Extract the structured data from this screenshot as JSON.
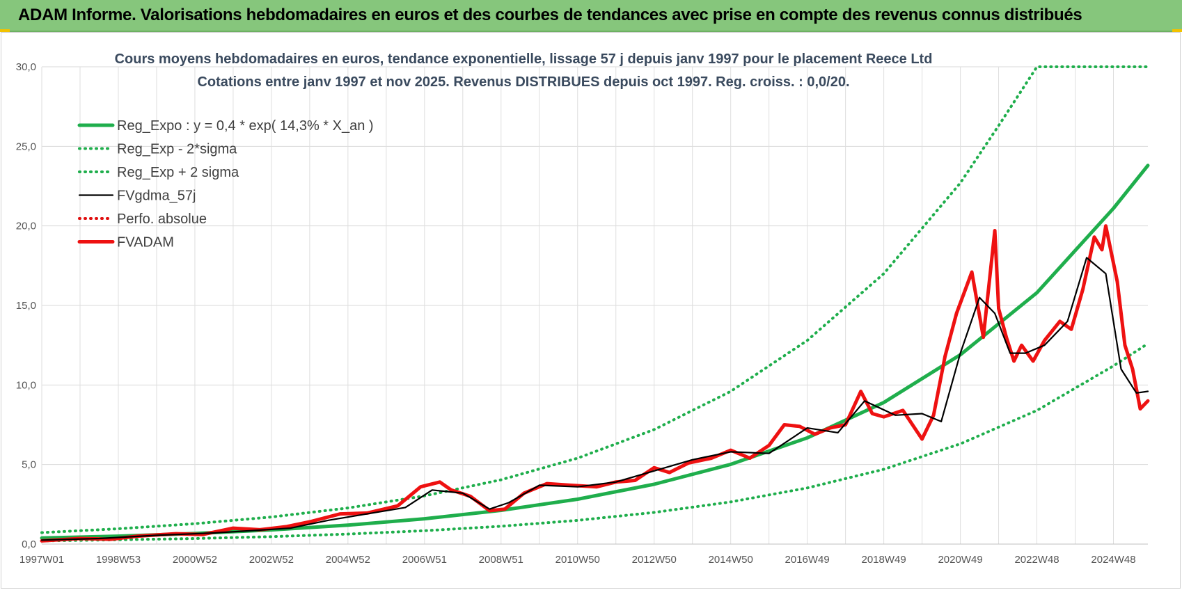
{
  "header": {
    "title": "ADAM Informe. Valorisations hebdomadaires en euros et des courbes de tendances avec prise en compte des revenus connus distribués"
  },
  "chart_data": {
    "type": "line",
    "title": "Cours moyens hebdomadaires en euros, tendance exponentielle, lissage 57 j depuis janv 1997 pour le placement Reece Ltd",
    "subtitle": "Cotations entre janv 1997 et nov 2025. Revenus DISTRIBUES depuis oct 1997. Reg. croiss. : 0,0/20.",
    "xlabel": "",
    "ylabel": "",
    "xlim": [
      1997.0,
      2025.9
    ],
    "ylim": [
      0,
      30
    ],
    "yticks": [
      "0,0",
      "5,0",
      "10,0",
      "15,0",
      "20,0",
      "25,0",
      "30,0"
    ],
    "xticks": [
      {
        "label": "1997W01",
        "x": 1997.0
      },
      {
        "label": "1998W53",
        "x": 1999.0
      },
      {
        "label": "2000W52",
        "x": 2001.0
      },
      {
        "label": "2002W52",
        "x": 2003.0
      },
      {
        "label": "2004W52",
        "x": 2005.0
      },
      {
        "label": "2006W51",
        "x": 2007.0
      },
      {
        "label": "2008W51",
        "x": 2009.0
      },
      {
        "label": "2010W50",
        "x": 2011.0
      },
      {
        "label": "2012W50",
        "x": 2013.0
      },
      {
        "label": "2014W50",
        "x": 2015.0
      },
      {
        "label": "2016W49",
        "x": 2017.0
      },
      {
        "label": "2018W49",
        "x": 2019.0
      },
      {
        "label": "2020W49",
        "x": 2021.0
      },
      {
        "label": "2022W48",
        "x": 2023.0
      },
      {
        "label": "2024W48",
        "x": 2025.0
      }
    ],
    "grid": true,
    "legend_position": "top-left",
    "series": [
      {
        "name": "Reg_Expo : y = 0,4 * exp( 14,3% *  X_an )",
        "style": "solid-thick",
        "color": "#1fae4c",
        "x": [
          1997.0,
          1999.0,
          2001.0,
          2003.0,
          2005.0,
          2007.0,
          2009.0,
          2011.0,
          2013.0,
          2015.0,
          2017.0,
          2019.0,
          2021.0,
          2023.0,
          2025.0,
          2025.9
        ],
        "y": [
          0.38,
          0.5,
          0.67,
          0.89,
          1.19,
          1.59,
          2.12,
          2.82,
          3.76,
          5.01,
          6.68,
          8.9,
          11.9,
          15.8,
          21.1,
          23.8
        ]
      },
      {
        "name": "Reg_Exp - 2*sigma",
        "style": "dotted",
        "color": "#1fae4c",
        "x": [
          1997.0,
          1999.0,
          2001.0,
          2003.0,
          2005.0,
          2007.0,
          2009.0,
          2011.0,
          2013.0,
          2015.0,
          2017.0,
          2019.0,
          2021.0,
          2023.0,
          2025.0,
          2025.9
        ],
        "y": [
          0.2,
          0.27,
          0.35,
          0.47,
          0.63,
          0.84,
          1.12,
          1.49,
          1.99,
          2.65,
          3.53,
          4.7,
          6.3,
          8.4,
          11.2,
          12.6
        ]
      },
      {
        "name": "Reg_Exp + 2 sigma",
        "style": "dotted",
        "color": "#1fae4c",
        "x": [
          1997.0,
          1999.0,
          2001.0,
          2003.0,
          2005.0,
          2007.0,
          2009.0,
          2011.0,
          2013.0,
          2015.0,
          2017.0,
          2019.0,
          2021.0,
          2022.0,
          2023.0,
          2025.9
        ],
        "y": [
          0.72,
          0.96,
          1.28,
          1.7,
          2.27,
          3.03,
          4.04,
          5.4,
          7.2,
          9.6,
          12.8,
          17.0,
          22.7,
          26.3,
          30.0,
          30.0
        ]
      },
      {
        "name": "FVgdma_57j",
        "style": "solid",
        "color": "#000000",
        "x": [
          1997.0,
          1998.5,
          2000.0,
          2001.5,
          2002.5,
          2003.5,
          2004.5,
          2005.5,
          2006.5,
          2007.2,
          2008.0,
          2008.7,
          2009.2,
          2010.0,
          2011.0,
          2012.0,
          2013.0,
          2014.0,
          2015.0,
          2016.0,
          2017.0,
          2017.8,
          2018.5,
          2019.3,
          2020.0,
          2020.5,
          2021.0,
          2021.5,
          2021.9,
          2022.3,
          2022.7,
          2023.2,
          2023.8,
          2024.3,
          2024.8,
          2025.2,
          2025.6,
          2025.9
        ],
        "y": [
          0.25,
          0.35,
          0.55,
          0.7,
          0.85,
          1.0,
          1.5,
          1.9,
          2.3,
          3.4,
          3.2,
          2.2,
          2.6,
          3.7,
          3.6,
          3.9,
          4.6,
          5.3,
          5.8,
          5.7,
          7.3,
          7.0,
          9.0,
          8.1,
          8.2,
          7.7,
          12.0,
          15.5,
          14.5,
          12.0,
          12.0,
          12.5,
          14.0,
          18.0,
          17.0,
          11.0,
          9.5,
          9.6
        ]
      },
      {
        "name": "Perfo. absolue",
        "style": "dotted",
        "color": "#e01010",
        "x": [],
        "y": []
      },
      {
        "name": "FVADAM",
        "style": "solid-thick",
        "color": "#ee1111",
        "x": [
          1997.0,
          1998.0,
          1998.8,
          1999.5,
          2000.5,
          2001.2,
          2002.0,
          2002.7,
          2003.4,
          2004.0,
          2004.8,
          2005.5,
          2006.3,
          2006.9,
          2007.4,
          2007.7,
          2008.2,
          2008.7,
          2009.1,
          2009.6,
          2010.2,
          2010.8,
          2011.5,
          2012.0,
          2012.5,
          2013.0,
          2013.4,
          2013.9,
          2014.5,
          2015.0,
          2015.5,
          2016.0,
          2016.4,
          2016.8,
          2017.2,
          2017.6,
          2018.0,
          2018.4,
          2018.7,
          2019.0,
          2019.5,
          2020.0,
          2020.3,
          2020.6,
          2020.9,
          2021.3,
          2021.6,
          2021.9,
          2022.0,
          2022.2,
          2022.4,
          2022.6,
          2022.9,
          2023.2,
          2023.6,
          2023.9,
          2024.2,
          2024.5,
          2024.7,
          2024.8,
          2025.1,
          2025.3,
          2025.5,
          2025.7,
          2025.9
        ],
        "y": [
          0.2,
          0.35,
          0.3,
          0.5,
          0.65,
          0.6,
          1.0,
          0.9,
          1.1,
          1.4,
          1.9,
          1.95,
          2.4,
          3.6,
          3.9,
          3.4,
          3.0,
          2.1,
          2.2,
          3.2,
          3.8,
          3.7,
          3.6,
          3.9,
          4.0,
          4.8,
          4.5,
          5.1,
          5.4,
          5.9,
          5.4,
          6.2,
          7.5,
          7.4,
          6.9,
          7.3,
          7.5,
          9.6,
          8.2,
          8.0,
          8.4,
          6.6,
          8.1,
          11.8,
          14.5,
          17.1,
          13.0,
          19.7,
          14.8,
          13.0,
          11.5,
          12.5,
          11.5,
          12.8,
          14.0,
          13.5,
          16.0,
          19.3,
          18.5,
          20.0,
          16.5,
          12.5,
          11.0,
          8.5,
          9.0
        ]
      }
    ]
  }
}
